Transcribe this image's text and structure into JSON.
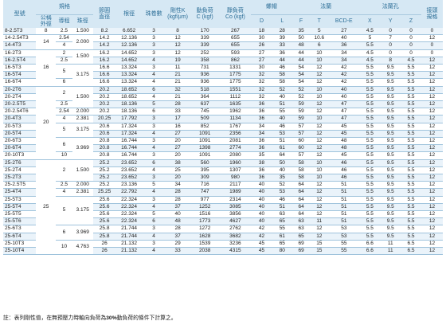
{
  "headers": {
    "model": "型號",
    "spec": "規格",
    "nominal_od": "公稱\n外徑",
    "lead": "導程",
    "ball_dia": "珠徑",
    "pitch_dia": "節圓\n直徑",
    "root_dia": "根徑",
    "circuits": "珠卷數",
    "stiffness": "剛性K\n(kgf/μm)",
    "dyn_load": "動負荷\nC (kgf)",
    "static_load": "靜負荷\nCo (kgf)",
    "nut": "螺帽",
    "flange": "法蘭",
    "flange_hole": "法蘭孔",
    "grease": "接頭\n規格",
    "D": "D",
    "L": "L",
    "F": "F",
    "T": "T",
    "BCD": "BCD-E",
    "X": "X",
    "Y": "Y",
    "Z": "Z",
    "S": "S"
  },
  "rows": [
    [
      "8-2.5T3",
      "8",
      "2.5",
      "1.500",
      "8.2",
      "6.652",
      "3",
      "8",
      "170",
      "267",
      "18",
      "28",
      "35",
      "5",
      "27",
      "4.5",
      "0",
      "0",
      "0"
    ],
    [
      "14-2.54T3",
      "14",
      "2.54",
      "2.000",
      "14.2",
      "12.136",
      "3",
      "12",
      "339",
      "655",
      "30",
      "39",
      "50",
      "10.6",
      "40",
      "5",
      "7",
      "0",
      "12"
    ],
    [
      "14-4T3",
      "",
      "4",
      "",
      "14.2",
      "12.136",
      "3",
      "12",
      "339",
      "655",
      "26",
      "33",
      "48",
      "6",
      "36",
      "5.5",
      "0",
      "0",
      "0"
    ],
    [
      "16-2T3",
      "",
      "2",
      "1.500",
      "16.2",
      "14.652",
      "3",
      "12",
      "252",
      "593",
      "27",
      "36",
      "44",
      "10",
      "34",
      "4.5",
      "0",
      "0",
      "0"
    ],
    [
      "16-2.5T4",
      "",
      "2.5",
      "",
      "16.2",
      "14.652",
      "4",
      "19",
      "358",
      "862",
      "27",
      "44",
      "44",
      "10",
      "34",
      "4.5",
      "8",
      "4.5",
      "12"
    ],
    [
      "16-5T3",
      "16",
      "",
      "",
      "16.6",
      "13.324",
      "3",
      "11",
      "731",
      "1331",
      "30",
      "46",
      "54",
      "12",
      "42",
      "5.5",
      "9.5",
      "5.5",
      "12"
    ],
    [
      "16-5T4",
      "",
      "5",
      "3.175",
      "16.6",
      "13.324",
      "4",
      "21",
      "936",
      "1775",
      "32",
      "58",
      "54",
      "12",
      "42",
      "5.5",
      "9.5",
      "5.5",
      "12"
    ],
    [
      "16-6T4",
      "",
      "6",
      "",
      "16.6",
      "13.324",
      "4",
      "21",
      "936",
      "1775",
      "32",
      "58",
      "54",
      "12",
      "42",
      "5.5",
      "9.5",
      "5.5",
      "12"
    ],
    [
      "20-2T6",
      "",
      "",
      "",
      "20.2",
      "18.652",
      "6",
      "32",
      "518",
      "1551",
      "32",
      "52",
      "52",
      "10",
      "40",
      "5.5",
      "9.5",
      "5.5",
      "12"
    ],
    [
      "20-2T4",
      "",
      "2",
      "1.500",
      "20.2",
      "18.652",
      "4",
      "21",
      "364",
      "1112",
      "32",
      "40",
      "52",
      "10",
      "40",
      "5.5",
      "9.5",
      "5.5",
      "12"
    ],
    [
      "20-2.5T5",
      "",
      "2.5",
      "",
      "20.2",
      "18.136",
      "5",
      "28",
      "637",
      "1635",
      "36",
      "51",
      "59",
      "12",
      "47",
      "5.5",
      "9.5",
      "5.5",
      "12"
    ],
    [
      "20-2.54T6",
      "",
      "2.54",
      "2.000",
      "20.2",
      "18.136",
      "6",
      "33",
      "745",
      "1962",
      "36",
      "55",
      "59",
      "12",
      "47",
      "5.5",
      "9.5",
      "5.5",
      "12"
    ],
    [
      "20-4T3",
      "20",
      "4",
      "2.381",
      "20.25",
      "17.792",
      "3",
      "17",
      "509",
      "1134",
      "36",
      "40",
      "59",
      "10",
      "47",
      "5.5",
      "9.5",
      "5.5",
      "12"
    ],
    [
      "20-5T3",
      "",
      "",
      "",
      "20.6",
      "17.324",
      "3",
      "16",
      "852",
      "1767",
      "34",
      "46",
      "57",
      "12",
      "45",
      "5.5",
      "9.5",
      "5.5",
      "12"
    ],
    [
      "20-5T4",
      "",
      "5",
      "3.175",
      "20.6",
      "17.324",
      "4",
      "27",
      "1091",
      "2356",
      "34",
      "53",
      "57",
      "12",
      "45",
      "5.5",
      "9.5",
      "5.5",
      "12"
    ],
    [
      "20-6T3",
      "",
      "",
      "",
      "20.8",
      "16.744",
      "3",
      "20",
      "1091",
      "2081",
      "36",
      "51",
      "60",
      "12",
      "48",
      "5.5",
      "9.5",
      "5.5",
      "12"
    ],
    [
      "20-6T4",
      "",
      "6",
      "3.969",
      "20.8",
      "16.744",
      "4",
      "27",
      "1398",
      "2774",
      "36",
      "61",
      "60",
      "12",
      "48",
      "5.5",
      "9.5",
      "5.5",
      "12"
    ],
    [
      "20-10T3",
      "",
      "10",
      "",
      "20.8",
      "16.744",
      "3",
      "20",
      "1091",
      "2080",
      "35",
      "64",
      "57",
      "12",
      "45",
      "5.5",
      "9.5",
      "5.5",
      "12"
    ],
    [
      "25-2T6",
      "",
      "",
      "",
      "25.2",
      "23.652",
      "6",
      "38",
      "560",
      "1960",
      "38",
      "50",
      "58",
      "10",
      "46",
      "5.5",
      "9.5",
      "5.5",
      "12"
    ],
    [
      "25-2T4",
      "",
      "2",
      "1.500",
      "25.2",
      "23.652",
      "4",
      "25",
      "395",
      "1307",
      "36",
      "40",
      "58",
      "10",
      "46",
      "5.5",
      "9.5",
      "5.5",
      "12"
    ],
    [
      "25-2T3",
      "",
      "",
      "",
      "25.2",
      "23.652",
      "3",
      "20",
      "309",
      "980",
      "36",
      "35",
      "58",
      "10",
      "46",
      "5.5",
      "9.5",
      "5.5",
      "12"
    ],
    [
      "25-2.5T5",
      "",
      "2.5",
      "2.000",
      "25.2",
      "23.136",
      "5",
      "34",
      "716",
      "2117",
      "40",
      "52",
      "64",
      "12",
      "51",
      "5.5",
      "9.5",
      "5.5",
      "12"
    ],
    [
      "25-4T4",
      "",
      "4",
      "2.381",
      "25.25",
      "22.792",
      "4",
      "28",
      "747",
      "1989",
      "40",
      "53",
      "64",
      "12",
      "51",
      "5.5",
      "9.5",
      "5.5",
      "12"
    ],
    [
      "25-5T3",
      "",
      "",
      "",
      "25.6",
      "22.324",
      "3",
      "28",
      "977",
      "2314",
      "40",
      "46",
      "64",
      "12",
      "51",
      "5.5",
      "9.5",
      "5.5",
      "12"
    ],
    [
      "25-5T4",
      "25",
      "5",
      "3.175",
      "25.6",
      "22.324",
      "4",
      "37",
      "1252",
      "3085",
      "40",
      "51",
      "64",
      "12",
      "51",
      "5.5",
      "9.5",
      "5.5",
      "12"
    ],
    [
      "25-5T5",
      "",
      "",
      "",
      "25.6",
      "22.324",
      "5",
      "40",
      "1516",
      "3856",
      "40",
      "63",
      "64",
      "12",
      "51",
      "5.5",
      "9.5",
      "5.5",
      "12"
    ],
    [
      "25-5T6",
      "",
      "",
      "",
      "25.6",
      "22.324",
      "6",
      "48",
      "1773",
      "4627",
      "40",
      "65",
      "63",
      "11",
      "51",
      "5.5",
      "9.5",
      "5.5",
      "12"
    ],
    [
      "25-6T3",
      "",
      "6",
      "3.969",
      "25.8",
      "21.744",
      "3",
      "28",
      "1272",
      "2762",
      "42",
      "55",
      "63",
      "12",
      "53",
      "5.5",
      "9.5",
      "5.5",
      "12"
    ],
    [
      "25-6T4",
      "",
      "",
      "",
      "25.8",
      "21.744",
      "4",
      "37",
      "1628",
      "3682",
      "42",
      "61",
      "65",
      "12",
      "53",
      "5.5",
      "9.5",
      "5.5",
      "12"
    ],
    [
      "25-10T3",
      "",
      "10",
      "4.763",
      "26",
      "21.132",
      "3",
      "29",
      "1539",
      "3236",
      "45",
      "65",
      "69",
      "15",
      "55",
      "6.6",
      "11",
      "6.5",
      "12"
    ],
    [
      "25-10T4",
      "",
      "",
      "",
      "26",
      "21.132",
      "4",
      "33",
      "2038",
      "4315",
      "45",
      "80",
      "69",
      "15",
      "55",
      "6.6",
      "11",
      "6.5",
      "12"
    ]
  ],
  "note_prefix": "註：表列剛性值，在無預壓力時軸向負荷為",
  "note_bold": "30%",
  "note_suffix": "動負荷的條件下計算之。"
}
